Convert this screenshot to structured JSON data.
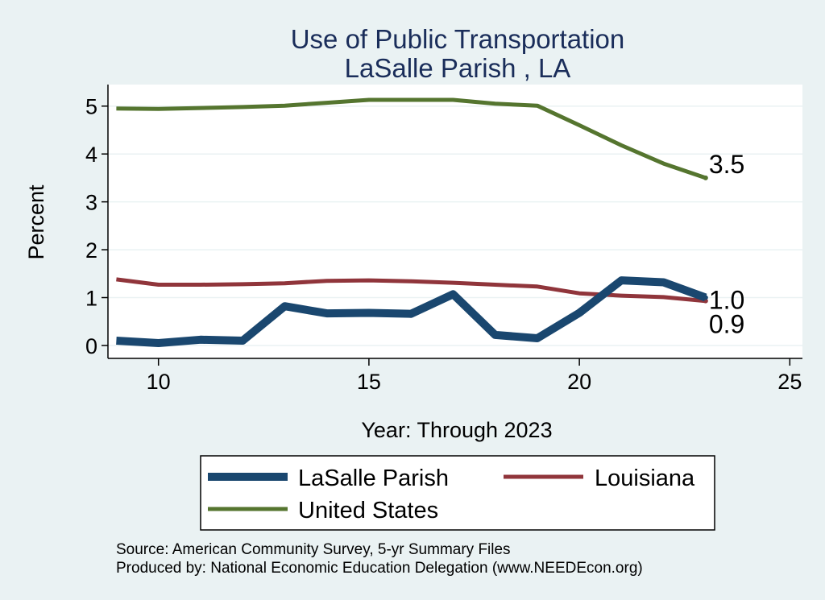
{
  "chart_data": {
    "type": "line",
    "title": [
      "Use of Public Transportation",
      "LaSalle Parish , LA"
    ],
    "xlabel": "Year: Through 2023",
    "ylabel": "Percent",
    "xlim": [
      8.8,
      25.3
    ],
    "ylim": [
      -0.27,
      5.45
    ],
    "x_ticks": [
      10,
      15,
      20,
      25
    ],
    "y_ticks": [
      0,
      1,
      2,
      3,
      4,
      5
    ],
    "grid": true,
    "x": [
      9,
      10,
      11,
      12,
      13,
      14,
      15,
      16,
      17,
      18,
      19,
      20,
      21,
      22,
      23
    ],
    "series": [
      {
        "name": "LaSalle Parish",
        "color": "#1a476f",
        "values": [
          0.1,
          0.05,
          0.12,
          0.1,
          0.82,
          0.67,
          0.68,
          0.66,
          1.07,
          0.22,
          0.15,
          0.68,
          1.36,
          1.32,
          1.0
        ],
        "end_label": "1.0"
      },
      {
        "name": "Louisiana",
        "color": "#90353b",
        "values": [
          1.38,
          1.27,
          1.27,
          1.28,
          1.3,
          1.35,
          1.36,
          1.34,
          1.31,
          1.27,
          1.23,
          1.09,
          1.04,
          1.01,
          0.93
        ],
        "end_label": "0.9"
      },
      {
        "name": "United States",
        "color": "#55752f",
        "values": [
          4.95,
          4.94,
          4.96,
          4.98,
          5.01,
          5.07,
          5.13,
          5.13,
          5.13,
          5.05,
          5.01,
          4.6,
          4.18,
          3.8,
          3.5
        ],
        "end_label": "3.5"
      }
    ],
    "legend_position": "bottom"
  },
  "source_line": "Source: American Community Survey, 5-yr Summary Files",
  "produced_line": "Produced by: National Economic Education Delegation (www.NEEDEcon.org)"
}
